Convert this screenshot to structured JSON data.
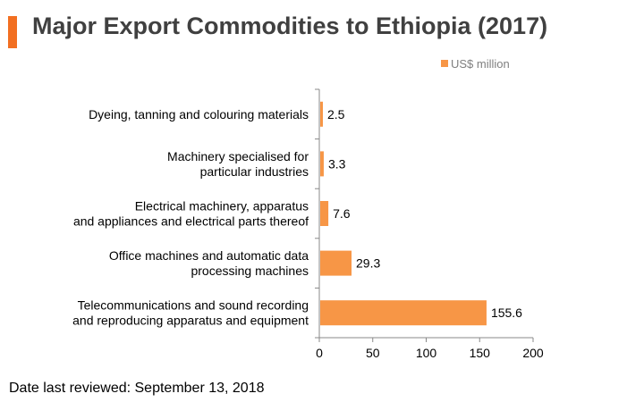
{
  "title": "Major Export Commodities to Ethiopia (2017)",
  "footer": "Date last reviewed: September 13, 2018",
  "colors": {
    "bar": "#f79646",
    "accent": "#f26f21",
    "axis": "#888888"
  },
  "chart_data": {
    "type": "bar",
    "orientation": "horizontal",
    "categories": [
      [
        "Dyeing, tanning and colouring materials"
      ],
      [
        "Machinery specialised for",
        "particular industries"
      ],
      [
        "Electrical machinery, apparatus",
        "and appliances and electrical parts thereof"
      ],
      [
        "Office machines and automatic data",
        "processing machines"
      ],
      [
        "Telecommunications and sound recording",
        "and reproducing apparatus and equipment"
      ]
    ],
    "series": [
      {
        "name": "US$ million",
        "values": [
          2.5,
          3.3,
          7.6,
          29.3,
          155.6
        ],
        "labels": [
          "2.5",
          "3.3",
          "7.6",
          "29.3",
          "155.6"
        ]
      }
    ],
    "xlim": [
      0,
      200
    ],
    "xticks": [
      0,
      50,
      100,
      150,
      200
    ],
    "legend_position": "top-right",
    "grid": false
  }
}
